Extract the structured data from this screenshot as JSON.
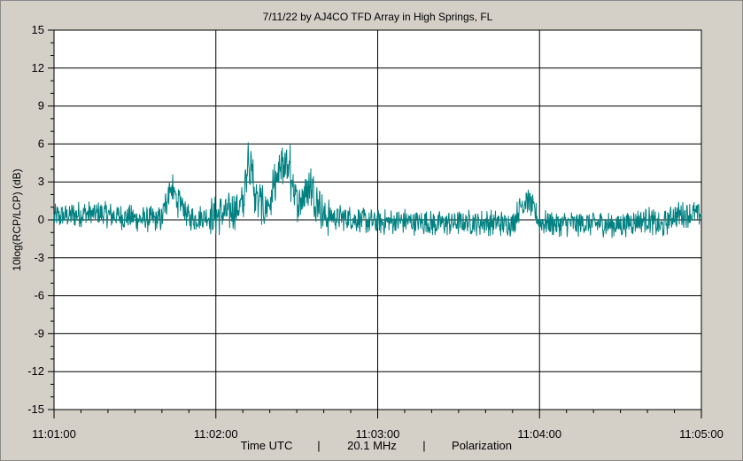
{
  "chart_data": {
    "type": "line",
    "title": "7/11/22  by  AJ4CO TFD Array  in  High Springs, FL",
    "ylabel": "10log(RCP/LCP) (dB)",
    "footer": [
      "Time UTC",
      "|",
      "20.1 MHz",
      "|",
      "Polarization"
    ],
    "x_tick_labels": [
      "11:01:00",
      "11:02:00",
      "11:03:00",
      "11:04:00",
      "11:05:00"
    ],
    "xlim_seconds": [
      0,
      240
    ],
    "y_ticks": [
      15,
      12,
      9,
      6,
      3,
      0,
      -3,
      -6,
      -9,
      -12,
      -15
    ],
    "ylim": [
      -15,
      15
    ],
    "grid": true,
    "zero_line": true,
    "series": [
      {
        "color": "#008080",
        "x": [
          0,
          10,
          20,
          30,
          40,
          43,
          50,
          60,
          65,
          70,
          72,
          75,
          78,
          80,
          85,
          88,
          90,
          95,
          100,
          110,
          120,
          130,
          140,
          150,
          160,
          170,
          175,
          180,
          190,
          200,
          210,
          220,
          225,
          230,
          240
        ],
        "y": [
          0.2,
          0.5,
          0.4,
          0.1,
          0.0,
          3.2,
          0.1,
          0.3,
          0.6,
          1.2,
          6.7,
          2.0,
          0.8,
          1.5,
          5.6,
          4.4,
          1.5,
          3.4,
          0.3,
          0.1,
          -0.2,
          -0.1,
          -0.3,
          -0.2,
          -0.2,
          -0.3,
          2.0,
          -0.2,
          -0.3,
          -0.3,
          -0.4,
          0.1,
          -0.6,
          0.4,
          0.5
        ]
      }
    ]
  }
}
